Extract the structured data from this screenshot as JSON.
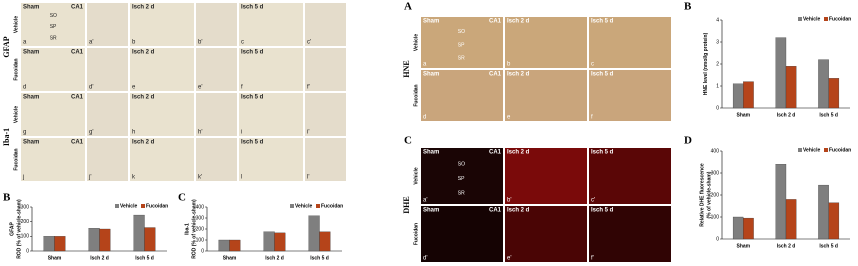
{
  "left_figure": {
    "micrographs": {
      "row_groups": [
        {
          "marker": "GFAP",
          "rows": [
            "Vehicle",
            "Fucoidan"
          ]
        },
        {
          "marker": "Iba-1",
          "rows": [
            "Vehicle",
            "Fucoidan"
          ]
        }
      ],
      "column_titles": [
        "Sham",
        "Isch 2 d",
        "Isch 5 d"
      ],
      "region": "CA1",
      "layers": [
        "SO",
        "SP",
        "SR"
      ],
      "letters": [
        [
          "a",
          "a'",
          "b",
          "b'",
          "c",
          "c'"
        ],
        [
          "d",
          "d'",
          "e",
          "e'",
          "f",
          "f'"
        ],
        [
          "g",
          "g'",
          "h",
          "h'",
          "i",
          "i'"
        ],
        [
          "j",
          "j'",
          "k",
          "k'",
          "l",
          "l'"
        ]
      ]
    },
    "panel_labels": [
      "B",
      "C"
    ]
  },
  "right_figure": {
    "panel_labels": [
      "A",
      "B",
      "C",
      "D"
    ],
    "hne": {
      "marker": "HNE",
      "rows": [
        "Vehicle",
        "Fucoidan"
      ],
      "column_titles": [
        "Sham",
        "Isch 2 d",
        "Isch 5 d"
      ],
      "region": "CA1",
      "layers": [
        "SO",
        "SP",
        "SR"
      ],
      "letters": [
        [
          "a",
          "b",
          "c"
        ],
        [
          "d",
          "e",
          "f"
        ]
      ]
    },
    "dhe": {
      "marker": "DHE",
      "rows": [
        "Vehicle",
        "Fucoidan"
      ],
      "column_titles": [
        "Sham",
        "Isch 2 d",
        "Isch 5 d"
      ],
      "region": "CA1",
      "layers": [
        "SO",
        "SP",
        "SR"
      ],
      "letters": [
        [
          "a'",
          "b'",
          "c'"
        ],
        [
          "d'",
          "e'",
          "f'"
        ]
      ]
    }
  },
  "chart_data": [
    {
      "type": "bar",
      "y_label": "GFAP\nROD (% of vehicle-sham)",
      "categories": [
        "Sham",
        "Isch 2 d",
        "Isch 5 d"
      ],
      "series": [
        {
          "name": "Vehicle",
          "color": "#7f7f7f",
          "values": [
            100,
            155,
            245
          ]
        },
        {
          "name": "Fucoidan",
          "color": "#b5441a",
          "values": [
            100,
            150,
            160
          ]
        }
      ],
      "ylim": [
        0,
        300
      ],
      "yticks": [
        0,
        100,
        200,
        300
      ],
      "legend": "upper right"
    },
    {
      "type": "bar",
      "y_label": "Iba-1\nROD (% of vehicle-sham)",
      "categories": [
        "Sham",
        "Isch 2 d",
        "Isch 5 d"
      ],
      "series": [
        {
          "name": "Vehicle",
          "color": "#7f7f7f",
          "values": [
            100,
            175,
            320
          ]
        },
        {
          "name": "Fucoidan",
          "color": "#b5441a",
          "values": [
            100,
            165,
            175
          ]
        }
      ],
      "ylim": [
        0,
        400
      ],
      "yticks": [
        0,
        100,
        200,
        300,
        400
      ],
      "legend": "upper right"
    },
    {
      "type": "bar",
      "y_label": "HNE level (nmol/g protein)",
      "categories": [
        "Sham",
        "Isch 2 d",
        "Isch 5 d"
      ],
      "series": [
        {
          "name": "Vehicle",
          "color": "#7f7f7f",
          "values": [
            1.1,
            3.2,
            2.2
          ]
        },
        {
          "name": "Fucoidan",
          "color": "#b5441a",
          "values": [
            1.2,
            1.9,
            1.35
          ]
        }
      ],
      "ylim": [
        0,
        4
      ],
      "yticks": [
        0,
        1,
        2,
        3,
        4
      ],
      "legend": "upper right"
    },
    {
      "type": "bar",
      "y_label": "Relative DHE fluorescence\n(% of vehicle-sham)",
      "categories": [
        "Sham",
        "Isch 2 d",
        "Isch 5 d"
      ],
      "series": [
        {
          "name": "Vehicle",
          "color": "#7f7f7f",
          "values": [
            100,
            340,
            245
          ]
        },
        {
          "name": "Fucoidan",
          "color": "#b5441a",
          "values": [
            95,
            180,
            165
          ]
        }
      ],
      "ylim": [
        0,
        400
      ],
      "yticks": [
        0,
        100,
        200,
        300,
        400
      ],
      "legend": "upper right"
    }
  ]
}
